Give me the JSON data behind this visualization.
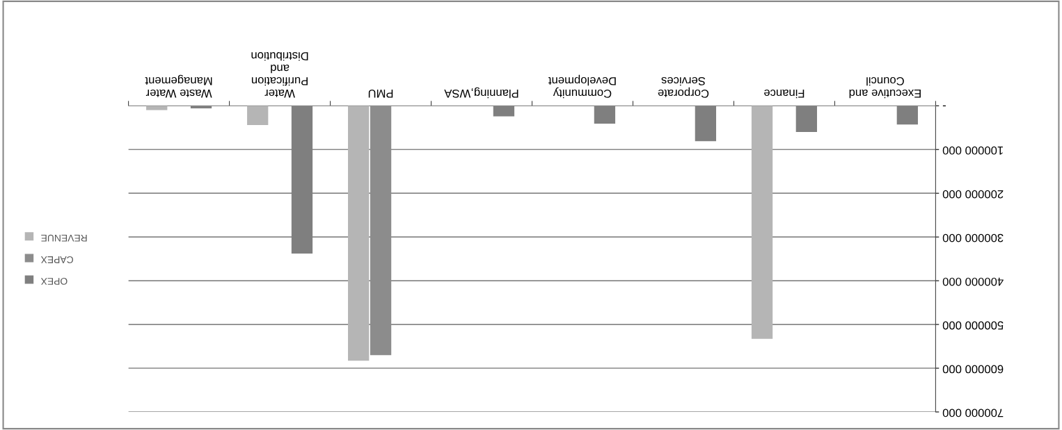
{
  "chart_data": {
    "type": "bar",
    "categories": [
      "Waste Water\nManagement",
      "Water\nPurification\nand\nDistribution",
      "PMU",
      "Planning,WSA",
      "Community\nDevelopment",
      "Corporate\nServices",
      "Finance",
      "Executive and\nCouncil"
    ],
    "series": [
      {
        "name": "OPEX",
        "color": "#7f7f7f",
        "values": [
          6000000,
          338000000,
          0,
          24000000,
          41000000,
          81000000,
          60000000,
          43000000
        ]
      },
      {
        "name": "CAPEX",
        "color": "#8c8c8c",
        "values": [
          0,
          0,
          570000000,
          0,
          0,
          0,
          0,
          0
        ]
      },
      {
        "name": "REVENUE",
        "color": "#b5b5b5",
        "values": [
          10000000,
          44000000,
          583000000,
          0,
          0,
          0,
          533000000,
          0
        ]
      }
    ],
    "ylim": [
      700000000,
      0
    ],
    "yticks": [
      {
        "value": 0,
        "label": "-"
      },
      {
        "value": 100000000,
        "label": "100000 000"
      },
      {
        "value": 200000000,
        "label": "200000 000"
      },
      {
        "value": 300000000,
        "label": "300000 000"
      },
      {
        "value": 400000000,
        "label": "400000 000"
      },
      {
        "value": 500000000,
        "label": "500000 000"
      },
      {
        "value": 600000000,
        "label": "600000 000"
      },
      {
        "value": 700000000,
        "label": "700000 000"
      }
    ],
    "grid": "y",
    "legend": "left"
  }
}
